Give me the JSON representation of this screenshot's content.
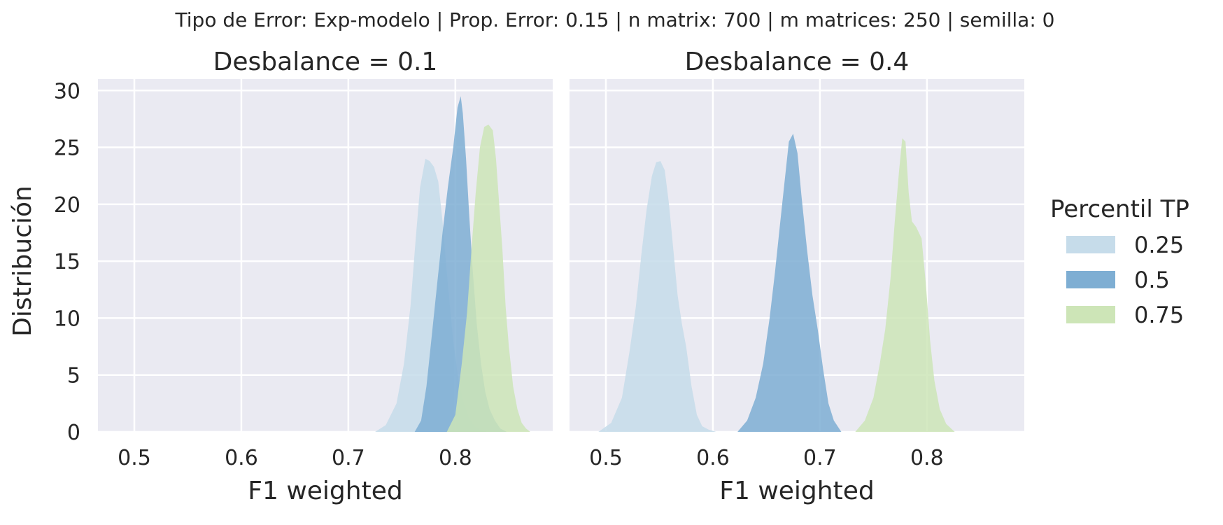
{
  "figure": {
    "suptitle": "Tipo de Error: Exp-modelo | Prop. Error: 0.15 | n matrix: 700 | m matrices: 250 | semilla: 0",
    "ylabel": "Distribución",
    "background": "#eaeaf2",
    "grid_color": "#ffffff"
  },
  "legend": {
    "title": "Percentil TP",
    "placement": "right",
    "entries": [
      {
        "label": "0.25",
        "color": "#c6dcea"
      },
      {
        "label": "0.5",
        "color": "#7eaed3"
      },
      {
        "label": "0.75",
        "color": "#cde5b7"
      }
    ]
  },
  "chart_data": [
    {
      "type": "area",
      "title": "Desbalance = 0.1",
      "xlabel": "F1 weighted",
      "ylabel": "Distribución",
      "xlim": [
        0.466,
        0.891
      ],
      "ylim": [
        0,
        31
      ],
      "xticks": [
        "0.5",
        "0.6",
        "0.7",
        "0.8"
      ],
      "yticks": [
        "0",
        "5",
        "10",
        "15",
        "20",
        "25",
        "30"
      ],
      "grid": true,
      "series": [
        {
          "name": "0.25",
          "color": "#c6dcea",
          "x": [
            0.725,
            0.735,
            0.745,
            0.752,
            0.758,
            0.763,
            0.767,
            0.772,
            0.776,
            0.78,
            0.784,
            0.788,
            0.793,
            0.798,
            0.803,
            0.808,
            0.813,
            0.818,
            0.823,
            0.83
          ],
          "y": [
            0,
            0.6,
            2.5,
            6,
            11,
            17,
            21.5,
            24,
            23.8,
            23.3,
            22,
            18.5,
            13,
            8,
            4.5,
            2.5,
            1.2,
            0.5,
            0.2,
            0
          ]
        },
        {
          "name": "0.5",
          "color": "#7eaed3",
          "x": [
            0.762,
            0.768,
            0.773,
            0.778,
            0.783,
            0.788,
            0.793,
            0.798,
            0.802,
            0.805,
            0.807,
            0.81,
            0.813,
            0.816,
            0.82,
            0.824,
            0.828,
            0.832,
            0.837,
            0.842,
            0.848
          ],
          "y": [
            0,
            1,
            4,
            8.5,
            13,
            17.5,
            21.5,
            25,
            28.5,
            29.5,
            28,
            24,
            19,
            14.5,
            9.5,
            6,
            3.5,
            2,
            1,
            0.3,
            0
          ]
        },
        {
          "name": "0.75",
          "color": "#cde5b7",
          "x": [
            0.792,
            0.8,
            0.806,
            0.811,
            0.815,
            0.819,
            0.823,
            0.827,
            0.831,
            0.835,
            0.838,
            0.841,
            0.844,
            0.847,
            0.85,
            0.854,
            0.858,
            0.862,
            0.866,
            0.87
          ],
          "y": [
            0,
            1.5,
            6,
            10.5,
            16,
            21,
            25,
            26.8,
            27,
            26.5,
            24,
            20,
            16,
            11,
            7.5,
            4,
            2,
            0.8,
            0.3,
            0
          ]
        }
      ]
    },
    {
      "type": "area",
      "title": "Desbalance = 0.4",
      "xlabel": "F1 weighted",
      "ylabel": "",
      "xlim": [
        0.466,
        0.891
      ],
      "ylim": [
        0,
        31
      ],
      "xticks": [
        "0.5",
        "0.6",
        "0.7",
        "0.8"
      ],
      "yticks": [
        "0",
        "5",
        "10",
        "15",
        "20",
        "25",
        "30"
      ],
      "grid": true,
      "series": [
        {
          "name": "0.25",
          "color": "#c6dcea",
          "x": [
            0.493,
            0.505,
            0.515,
            0.522,
            0.528,
            0.533,
            0.538,
            0.543,
            0.547,
            0.551,
            0.555,
            0.559,
            0.563,
            0.567,
            0.571,
            0.575,
            0.58,
            0.585,
            0.59,
            0.596,
            0.603
          ],
          "y": [
            0,
            0.8,
            3,
            7,
            11,
            15.5,
            19.5,
            22.5,
            23.7,
            23.8,
            23,
            20,
            16,
            12,
            9.5,
            7.5,
            4,
            1.5,
            0.5,
            0.2,
            0
          ]
        },
        {
          "name": "0.5",
          "color": "#7eaed3",
          "x": [
            0.623,
            0.632,
            0.64,
            0.647,
            0.653,
            0.658,
            0.663,
            0.667,
            0.671,
            0.675,
            0.679,
            0.683,
            0.688,
            0.693,
            0.698,
            0.703,
            0.708,
            0.713,
            0.72
          ],
          "y": [
            0,
            1,
            3,
            6,
            10,
            14,
            18.5,
            22,
            25.5,
            26.2,
            24.5,
            20.5,
            16,
            12,
            9,
            5.5,
            2.5,
            1,
            0
          ]
        },
        {
          "name": "0.75",
          "color": "#cde5b7",
          "x": [
            0.733,
            0.742,
            0.75,
            0.756,
            0.761,
            0.766,
            0.77,
            0.774,
            0.777,
            0.78,
            0.783,
            0.786,
            0.79,
            0.795,
            0.799,
            0.803,
            0.807,
            0.812,
            0.818,
            0.826
          ],
          "y": [
            0,
            1,
            3,
            6,
            9,
            13.5,
            18.5,
            23,
            25.8,
            25.5,
            21,
            18.5,
            18,
            17,
            13,
            8,
            4.5,
            2,
            0.7,
            0
          ]
        }
      ]
    }
  ]
}
